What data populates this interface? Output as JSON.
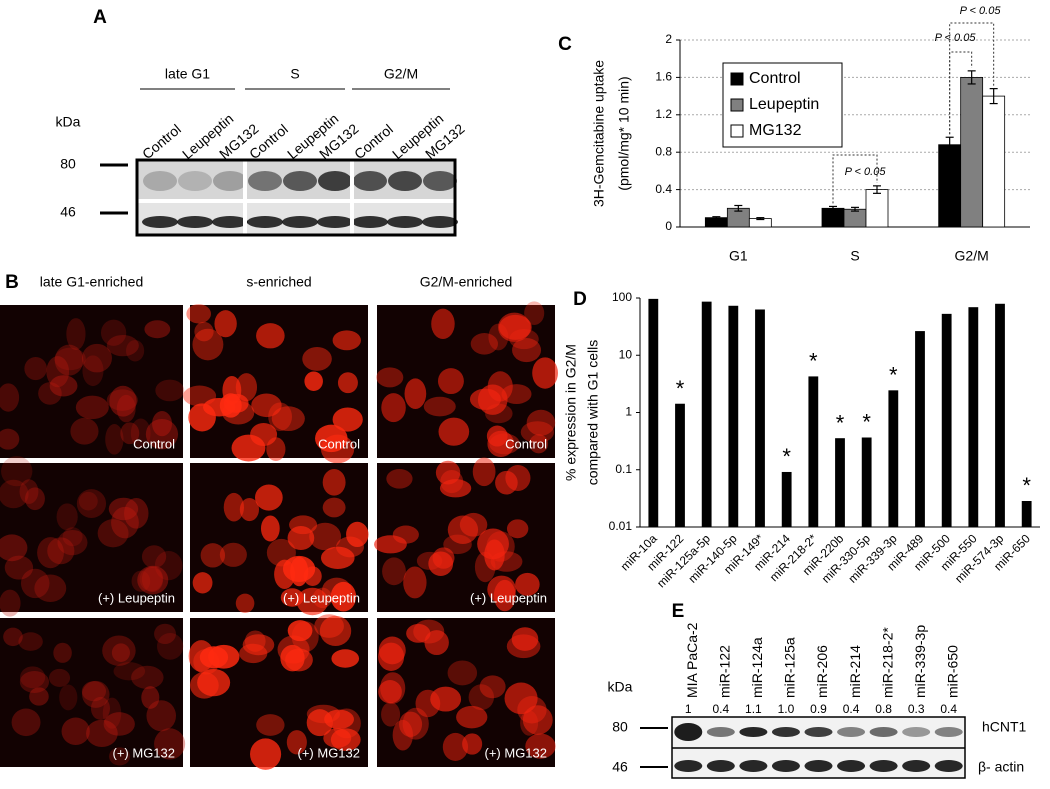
{
  "panel_a": {
    "letter": "A",
    "groups": [
      "late G1",
      "S",
      "G2/M"
    ],
    "lanes": [
      "Control",
      "Leupeptin",
      "MG132",
      "Control",
      "Leupeptin",
      "MG132",
      "Control",
      "Leupeptin",
      "MG132"
    ],
    "kda_label": "kDa",
    "markers": [
      "80",
      "46"
    ]
  },
  "panel_b": {
    "letter": "B",
    "columns": [
      "late G1-enriched",
      "s-enriched",
      "G2/M-enriched"
    ],
    "rows": [
      [
        "Control",
        "Control",
        "Control"
      ],
      [
        "(+) Leupeptin",
        "(+) Leupeptin",
        "(+) Leupeptin"
      ],
      [
        "(+) MG132",
        "(+) MG132",
        "(+) MG132"
      ]
    ]
  },
  "panel_e": {
    "letter": "E",
    "lanes": [
      "MIA PaCa-2",
      "miR-122",
      "miR-124a",
      "miR-125a",
      "miR-206",
      "miR-214",
      "miR-218-2*",
      "miR-339-3p",
      "miR-650"
    ],
    "ratios": [
      "1",
      "0.4",
      "1.1",
      "1.0",
      "0.9",
      "0.4",
      "0.8",
      "0.3",
      "0.4"
    ],
    "kda_label": "kDa",
    "markers": [
      "80",
      "46"
    ],
    "proteins": [
      "hCNT1",
      "β- actin"
    ]
  },
  "chart_data": [
    {
      "panel": "C",
      "type": "bar",
      "ylabel": [
        "3H-Gemcitabine uptake",
        "(pmol/mg* 10 min)"
      ],
      "categories": [
        "G1",
        "S",
        "G2/M"
      ],
      "series": [
        {
          "name": "Control",
          "color": "#000000",
          "values": [
            0.1,
            0.2,
            0.88
          ],
          "errors": [
            0.01,
            0.02,
            0.08
          ]
        },
        {
          "name": "Leupeptin",
          "color": "#808080",
          "values": [
            0.2,
            0.19,
            1.6
          ],
          "errors": [
            0.03,
            0.02,
            0.07
          ]
        },
        {
          "name": "MG132",
          "color": "#ffffff",
          "values": [
            0.09,
            0.4,
            1.4
          ],
          "errors": [
            0.01,
            0.04,
            0.08
          ]
        }
      ],
      "ylim": [
        0,
        2
      ],
      "yticks": [
        0,
        0.4,
        0.8,
        1.2,
        1.6,
        2
      ],
      "grid": true,
      "legend": "top-left",
      "annotations": [
        "P < 0.05",
        "P < 0.05",
        "P < 0.05"
      ]
    },
    {
      "panel": "D",
      "type": "bar",
      "log": true,
      "ylabel": [
        "% expression in G2/M",
        "compared with G1 cells"
      ],
      "categories": [
        "miR-10a",
        "miR-122",
        "miR-125a-5p",
        "miR-140-5p",
        "miR-149*",
        "miR-214",
        "miR-218-2*",
        "miR-220b",
        "miR-330-5p",
        "miR-339-3p",
        "miR-489",
        "miR-500",
        "miR-550",
        "miR-574-3p",
        "miR-650"
      ],
      "values": [
        95,
        1.4,
        85,
        72,
        62,
        0.09,
        4.2,
        0.35,
        0.36,
        2.4,
        26,
        52,
        68,
        78,
        0.028
      ],
      "significance": [
        null,
        "*",
        null,
        null,
        null,
        "*",
        "*",
        "*",
        "*",
        "*",
        null,
        null,
        null,
        null,
        "*"
      ],
      "color": "#000000",
      "ylim": [
        0.01,
        100
      ],
      "yticks": [
        0.01,
        0.1,
        1,
        10,
        100
      ]
    }
  ]
}
